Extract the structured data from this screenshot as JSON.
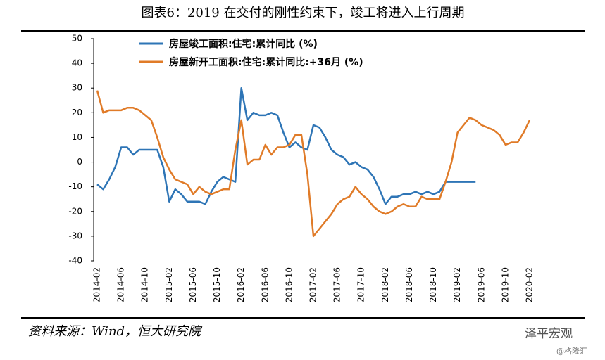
{
  "chart_data": {
    "type": "line",
    "title": "图表6：2019 在交付的刚性约束下，竣工将进入上行周期",
    "source": "资料来源：Wind，恒大研究院",
    "watermark": "泽平宏观",
    "credit": "@格隆汇",
    "categories": [
      "2014-02",
      null,
      null,
      null,
      "2014-06",
      null,
      null,
      null,
      "2014-10",
      null,
      null,
      null,
      "2015-02",
      null,
      null,
      null,
      "2015-06",
      null,
      null,
      null,
      "2015-10",
      null,
      null,
      null,
      "2016-02",
      null,
      null,
      null,
      "2016-06",
      null,
      null,
      null,
      "2016-10",
      null,
      null,
      null,
      "2017-02",
      null,
      null,
      null,
      "2017-06",
      null,
      null,
      null,
      "2017-10",
      null,
      null,
      null,
      "2018-02",
      null,
      null,
      null,
      "2018-06",
      null,
      null,
      null,
      "2018-10",
      null,
      null,
      null,
      "2019-02",
      null,
      null,
      null,
      "2019-06",
      null,
      null,
      null,
      "2019-10",
      null,
      null,
      null,
      "2020-02"
    ],
    "series": [
      {
        "name": "房屋竣工面积:住宅:累计同比 (%)",
        "color": "#2e75b6",
        "values": [
          -9,
          -11,
          -7,
          -2,
          6,
          6,
          3,
          5,
          5,
          5,
          5,
          -2,
          -16,
          -11,
          -13,
          -16,
          -16,
          -16,
          -17,
          -12,
          -8,
          -6,
          -7,
          -8,
          30,
          17,
          20,
          19,
          19,
          20,
          19,
          12,
          6,
          8,
          6,
          5,
          15,
          14,
          10,
          5,
          3,
          2,
          -1,
          0,
          -2,
          -3,
          -6,
          -11,
          -17,
          -14,
          -14,
          -13,
          -13,
          -12,
          -13,
          -12,
          -13,
          -12,
          -8,
          -8,
          -8,
          -8,
          -8,
          -8,
          null,
          null,
          null,
          null,
          null,
          null,
          null,
          null,
          null
        ]
      },
      {
        "name": "房屋新开工面积:住宅:累计同比:+36月 (%)",
        "color": "#e07b28",
        "values": [
          29,
          20,
          21,
          21,
          21,
          22,
          22,
          21,
          19,
          17,
          10,
          2,
          -3,
          -7,
          -8,
          -9,
          -13,
          -10,
          -12,
          -13,
          -12,
          -11,
          -11,
          5,
          17,
          -1,
          1,
          1,
          7,
          3,
          6,
          6,
          7,
          11,
          11,
          -5,
          -30,
          -27,
          -24,
          -21,
          -17,
          -15,
          -14,
          -10,
          -13,
          -15,
          -18,
          -20,
          -21,
          -20,
          -18,
          -17,
          -18,
          -18,
          -14,
          -15,
          -15,
          -15,
          -8,
          0,
          12,
          15,
          18,
          17,
          15,
          14,
          13,
          11,
          7,
          8,
          8,
          12,
          17
        ]
      }
    ],
    "ylim": [
      -40,
      50
    ],
    "yticks": [
      -40,
      -30,
      -20,
      -10,
      0,
      10,
      20,
      30,
      40,
      50
    ]
  }
}
